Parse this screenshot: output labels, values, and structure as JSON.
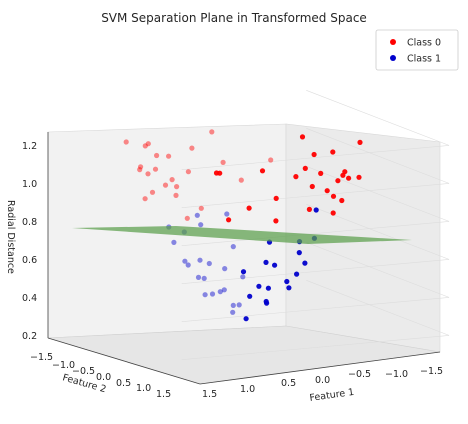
{
  "chart_data": {
    "type": "scatter",
    "projection": "3d",
    "title": "SVM Separation Plane in Transformed Space",
    "xlabel": "Feature 1",
    "ylabel": "Feature 2",
    "zlabel": "Radial Distance",
    "xlim": [
      -1.5,
      1.5
    ],
    "ylim": [
      -1.5,
      1.5
    ],
    "zlim": [
      0.2,
      1.25
    ],
    "x_ticks": [
      "1.5",
      "1.0",
      "0.5",
      "0.0",
      "−0.5",
      "−1.0",
      "−1.5"
    ],
    "y_ticks": [
      "−1.5",
      "−1.0",
      "−0.5",
      "0.0",
      "0.5",
      "1.0",
      "1.5"
    ],
    "z_ticks": [
      "0.2",
      "0.4",
      "0.6",
      "0.8",
      "1.0",
      "1.2"
    ],
    "legend_position": "top-right",
    "colors": {
      "class0": "#ff0000",
      "class1": "#0000cc",
      "plane": "#5a9e4b",
      "pane": "#f2f2f2",
      "grid": "#dddddd"
    },
    "plane": {
      "z": 0.8,
      "description": "separating plane"
    },
    "series": [
      {
        "name": "Class 0",
        "color": "#ff0000",
        "points": [
          [
            0.95,
            -1.2,
            1.13
          ],
          [
            1.13,
            0.36,
            1.15
          ],
          [
            0.4,
            1.05,
            1.12
          ],
          [
            -0.55,
            0.9,
            1.13
          ],
          [
            -1.12,
            -0.34,
            1.12
          ],
          [
            -0.1,
            -1.1,
            1.1
          ],
          [
            0.9,
            -0.1,
            1.11
          ],
          [
            0.6,
            0.95,
            1.05
          ],
          [
            -0.95,
            0.55,
            1.07
          ],
          [
            -0.65,
            -0.9,
            1.04
          ],
          [
            0.3,
            -0.95,
            1.09
          ],
          [
            1.0,
            0.3,
            1.02
          ],
          [
            -0.2,
            1.05,
            1.08
          ],
          [
            -1.05,
            0.1,
            1.03
          ],
          [
            0.7,
            -0.8,
            1.08
          ],
          [
            1.05,
            -0.55,
            1.0
          ],
          [
            0.05,
            1.0,
            1.01
          ],
          [
            -0.8,
            -0.7,
            0.98
          ],
          [
            0.5,
            0.9,
            1.0
          ],
          [
            -1.0,
            0.4,
            0.99
          ],
          [
            0.85,
            0.6,
            0.97
          ],
          [
            -0.4,
            -1.0,
            0.96
          ],
          [
            0.2,
            -1.05,
            0.95
          ],
          [
            -0.95,
            -0.3,
            0.95
          ],
          [
            0.95,
            -0.35,
            0.93
          ],
          [
            -0.3,
            1.0,
            0.92
          ],
          [
            0.65,
            0.8,
            0.92
          ],
          [
            -0.7,
            0.75,
            0.94
          ],
          [
            0.45,
            -0.95,
            0.9
          ],
          [
            1.0,
            0.05,
            0.91
          ],
          [
            -1.0,
            -0.1,
            0.9
          ],
          [
            0.1,
            0.98,
            0.89
          ],
          [
            -0.55,
            -0.85,
            0.91
          ],
          [
            0.8,
            -0.6,
            0.88
          ],
          [
            -0.85,
            0.5,
            0.87
          ],
          [
            0.3,
            0.95,
            0.86
          ],
          [
            -0.2,
            -1.0,
            0.87
          ],
          [
            0.95,
            0.3,
            0.85
          ],
          [
            -0.75,
            -0.65,
            0.86
          ],
          [
            0.6,
            -0.8,
            0.83
          ],
          [
            -0.9,
            0.25,
            0.84
          ],
          [
            0.15,
            -0.95,
            0.82
          ],
          [
            -0.45,
            0.9,
            0.83
          ],
          [
            0.85,
            -0.4,
            0.81
          ],
          [
            -0.6,
            -0.75,
            0.81
          ],
          [
            0.4,
            0.9,
            0.84
          ],
          [
            -1.05,
            -0.45,
            0.95
          ],
          [
            1.1,
            -0.2,
            1.06
          ],
          [
            -0.3,
            -1.05,
            1.06
          ],
          [
            0.7,
            0.7,
            1.09
          ]
        ]
      },
      {
        "name": "Class 1",
        "color": "#0000cc",
        "points": [
          [
            0.15,
            0.7,
            0.69
          ],
          [
            -0.55,
            -0.45,
            0.65
          ],
          [
            0.35,
            0.6,
            0.62
          ],
          [
            -0.3,
            -0.6,
            0.6
          ],
          [
            0.6,
            0.35,
            0.6
          ],
          [
            -0.65,
            0.05,
            0.58
          ],
          [
            0.1,
            -0.65,
            0.57
          ],
          [
            0.55,
            -0.3,
            0.55
          ],
          [
            -0.5,
            0.4,
            0.55
          ],
          [
            0.3,
            -0.55,
            0.52
          ],
          [
            0.6,
            0.05,
            0.51
          ],
          [
            -0.2,
            0.6,
            0.52
          ],
          [
            -0.55,
            -0.25,
            0.5
          ],
          [
            0.45,
            0.4,
            0.49
          ],
          [
            0.2,
            0.55,
            0.47
          ],
          [
            -0.35,
            -0.45,
            0.47
          ],
          [
            0.5,
            -0.1,
            0.45
          ],
          [
            -0.45,
            0.2,
            0.45
          ],
          [
            0.1,
            -0.5,
            0.43
          ],
          [
            -0.05,
            0.5,
            0.42
          ],
          [
            0.35,
            0.3,
            0.41
          ],
          [
            -0.4,
            -0.15,
            0.4
          ],
          [
            0.4,
            -0.25,
            0.39
          ],
          [
            -0.2,
            0.4,
            0.38
          ],
          [
            0.15,
            -0.4,
            0.37
          ],
          [
            -0.3,
            0.05,
            0.35
          ],
          [
            0.3,
            0.1,
            0.34
          ],
          [
            0.05,
            0.32,
            0.33
          ],
          [
            -0.1,
            -0.28,
            0.32
          ],
          [
            0.2,
            -0.15,
            0.3
          ],
          [
            -0.2,
            -0.1,
            0.29
          ],
          [
            0.0,
            0.1,
            0.27
          ],
          [
            0.1,
            0.05,
            0.24
          ],
          [
            -0.65,
            -0.3,
            0.78
          ],
          [
            0.7,
            -0.4,
            0.77
          ],
          [
            0.3,
            -0.2,
            0.79
          ],
          [
            -0.05,
            0.05,
            0.2
          ],
          [
            0.55,
            0.55,
            0.66
          ],
          [
            -0.45,
            -0.1,
            0.36
          ],
          [
            0.25,
            0.35,
            0.31
          ]
        ]
      }
    ]
  }
}
